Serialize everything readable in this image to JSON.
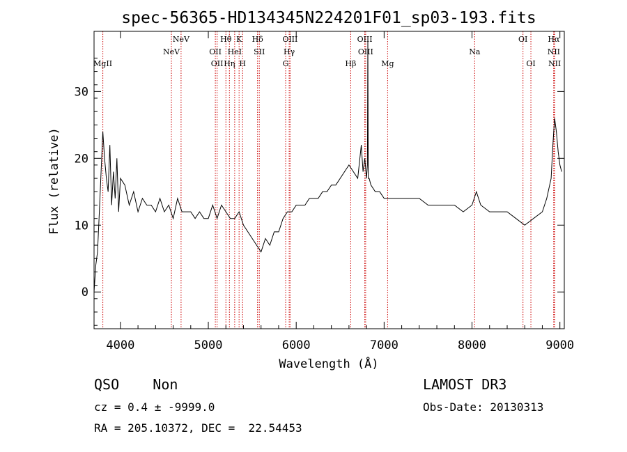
{
  "chart_data": {
    "type": "line",
    "title": "spec-56365-HD134345N224201F01_sp03-193.fits",
    "xlabel": "Wavelength (Å)",
    "ylabel": "Flux (relative)",
    "xlim": [
      3700,
      9050
    ],
    "ylim": [
      -5.5,
      39
    ],
    "x_ticks": [
      4000,
      5000,
      6000,
      7000,
      8000,
      9000
    ],
    "y_ticks": [
      0,
      10,
      20,
      30
    ],
    "x_tick_labels": [
      "4000",
      "5000",
      "6000",
      "7000",
      "8000",
      "9000"
    ],
    "y_tick_labels": [
      "0",
      "10",
      "20",
      "30"
    ],
    "line_color": "#000000",
    "marker_color": "#cc0000",
    "series": [
      {
        "x": [
          3700,
          3720,
          3740,
          3760,
          3780,
          3800,
          3820,
          3840,
          3860,
          3880,
          3900,
          3920,
          3940,
          3960,
          3980,
          4000,
          4050,
          4100,
          4150,
          4200,
          4250,
          4300,
          4350,
          4400,
          4450,
          4500,
          4550,
          4600,
          4650,
          4700,
          4750,
          4800,
          4850,
          4900,
          4950,
          5000,
          5050,
          5100,
          5150,
          5200,
          5250,
          5300,
          5350,
          5400,
          5450,
          5500,
          5550,
          5600,
          5650,
          5700,
          5750,
          5800,
          5850,
          5900,
          5950,
          6000,
          6050,
          6100,
          6150,
          6200,
          6250,
          6300,
          6350,
          6400,
          6450,
          6500,
          6550,
          6600,
          6650,
          6700,
          6740,
          6760,
          6780,
          6800,
          6810,
          6815,
          6820,
          6830,
          6850,
          6900,
          6950,
          7000,
          7050,
          7100,
          7200,
          7300,
          7400,
          7500,
          7600,
          7700,
          7800,
          7900,
          8000,
          8050,
          8100,
          8200,
          8300,
          8400,
          8500,
          8600,
          8700,
          8800,
          8850,
          8900,
          8920,
          8940,
          8960,
          8980,
          9000,
          9020
        ],
        "y": [
          0,
          4,
          6,
          12,
          18,
          24,
          20,
          17,
          15,
          22,
          13,
          18,
          14,
          20,
          12,
          17,
          16,
          13,
          15,
          12,
          14,
          13,
          13,
          12,
          14,
          12,
          13,
          11,
          14,
          12,
          12,
          12,
          11,
          12,
          11,
          11,
          13,
          11,
          13,
          12,
          11,
          11,
          12,
          10,
          9,
          8,
          7,
          6,
          8,
          7,
          9,
          9,
          11,
          12,
          12,
          13,
          13,
          13,
          14,
          14,
          14,
          15,
          15,
          16,
          16,
          17,
          18,
          19,
          18,
          17,
          22,
          18,
          20,
          17,
          19,
          38,
          17,
          17,
          16,
          15,
          15,
          14,
          14,
          14,
          14,
          14,
          14,
          13,
          13,
          13,
          13,
          12,
          13,
          15,
          13,
          12,
          12,
          12,
          11,
          10,
          11,
          12,
          14,
          17,
          22,
          26,
          24,
          21,
          19,
          18
        ]
      }
    ],
    "lines": [
      {
        "name": "MgII",
        "x": 3800,
        "row": 2,
        "anchor": "middle"
      },
      {
        "name": "NeV",
        "x": 4580,
        "row": 1,
        "anchor": "middle"
      },
      {
        "name": "NeV",
        "x": 4690,
        "row": 0,
        "anchor": "middle"
      },
      {
        "name": "OII",
        "x": 5080,
        "row": 1,
        "anchor": "middle"
      },
      {
        "name": "OII",
        "x": 5100,
        "row": 2,
        "anchor": "middle"
      },
      {
        "name": "Hθ",
        "x": 5200,
        "row": 0,
        "anchor": "middle"
      },
      {
        "name": "Hη",
        "x": 5240,
        "row": 2,
        "anchor": "middle"
      },
      {
        "name": "HeI",
        "x": 5300,
        "row": 1,
        "anchor": "middle"
      },
      {
        "name": "K",
        "x": 5350,
        "row": 0,
        "anchor": "middle"
      },
      {
        "name": "H",
        "x": 5390,
        "row": 2,
        "anchor": "middle"
      },
      {
        "name": "Hδ",
        "x": 5560,
        "row": 0,
        "anchor": "middle"
      },
      {
        "name": "SII",
        "x": 5580,
        "row": 1,
        "anchor": "middle"
      },
      {
        "name": "OIII",
        "x": 5930,
        "row": 0,
        "anchor": "middle"
      },
      {
        "name": "Hγ",
        "x": 5920,
        "row": 1,
        "anchor": "middle"
      },
      {
        "name": "G",
        "x": 5880,
        "row": 2,
        "anchor": "middle"
      },
      {
        "name": "Hβ",
        "x": 6620,
        "row": 2,
        "anchor": "middle"
      },
      {
        "name": "OIII",
        "x": 6780,
        "row": 0,
        "anchor": "middle"
      },
      {
        "name": "OIII",
        "x": 6790,
        "row": 1,
        "anchor": "middle"
      },
      {
        "name": "Mg",
        "x": 7040,
        "row": 2,
        "anchor": "middle"
      },
      {
        "name": "Na",
        "x": 8030,
        "row": 1,
        "anchor": "middle"
      },
      {
        "name": "OI",
        "x": 8580,
        "row": 0,
        "anchor": "middle"
      },
      {
        "name": "OI",
        "x": 8670,
        "row": 2,
        "anchor": "middle"
      },
      {
        "name": "Hα",
        "x": 8930,
        "row": 0,
        "anchor": "middle"
      },
      {
        "name": "NII",
        "x": 8930,
        "row": 1,
        "anchor": "middle"
      },
      {
        "name": "NII",
        "x": 8940,
        "row": 2,
        "anchor": "middle"
      }
    ]
  },
  "info": {
    "class_label": "QSO    Non",
    "survey_label": "LAMOST DR3",
    "cz_text": "cz = 0.4 ± -9999.0",
    "obs_date_text": "Obs-Date: 20130313",
    "radec_text": "RA = 205.10372, DEC =  22.54453"
  }
}
